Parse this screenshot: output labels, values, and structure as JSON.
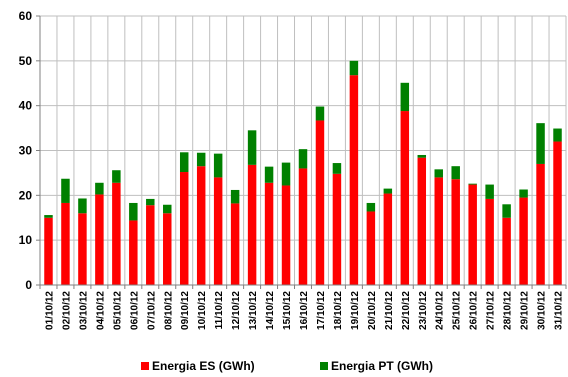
{
  "chart_data": {
    "type": "bar",
    "stacked": true,
    "title": "",
    "xlabel": "",
    "ylabel": "",
    "ylim": [
      0,
      60
    ],
    "yticks": [
      0,
      10,
      20,
      30,
      40,
      50,
      60
    ],
    "grid": true,
    "legend_position": "bottom",
    "categories": [
      "01/10/12",
      "02/10/12",
      "03/10/12",
      "04/10/12",
      "05/10/12",
      "06/10/12",
      "07/10/12",
      "08/10/12",
      "09/10/12",
      "10/10/12",
      "11/10/12",
      "12/10/12",
      "13/10/12",
      "14/10/12",
      "15/10/12",
      "16/10/12",
      "17/10/12",
      "18/10/12",
      "19/10/12",
      "20/10/12",
      "21/10/12",
      "22/10/12",
      "23/10/12",
      "24/10/12",
      "25/10/12",
      "26/10/12",
      "27/10/12",
      "28/10/12",
      "29/10/12",
      "30/10/12",
      "31/10/12"
    ],
    "series": [
      {
        "name": "Energia ES (GWh)",
        "color": "#ff0000",
        "values": [
          15.0,
          18.3,
          16.0,
          20.2,
          22.8,
          14.4,
          17.8,
          16.0,
          25.2,
          26.5,
          24.0,
          18.2,
          26.8,
          22.8,
          22.2,
          26.0,
          36.7,
          24.8,
          46.8,
          16.4,
          20.4,
          38.8,
          28.4,
          24.0,
          23.6,
          22.4,
          19.2,
          15.0,
          19.5,
          27.0,
          32.0
        ]
      },
      {
        "name": "Energia PT (GWh)",
        "color": "#008000",
        "values": [
          0.6,
          5.4,
          3.3,
          2.6,
          2.8,
          3.9,
          1.4,
          1.9,
          4.4,
          3.0,
          5.3,
          3.0,
          7.7,
          3.6,
          5.1,
          4.3,
          3.1,
          2.4,
          3.2,
          1.9,
          1.1,
          6.3,
          0.6,
          1.8,
          2.9,
          0.2,
          3.2,
          3.0,
          1.8,
          9.1,
          2.9
        ]
      }
    ]
  }
}
